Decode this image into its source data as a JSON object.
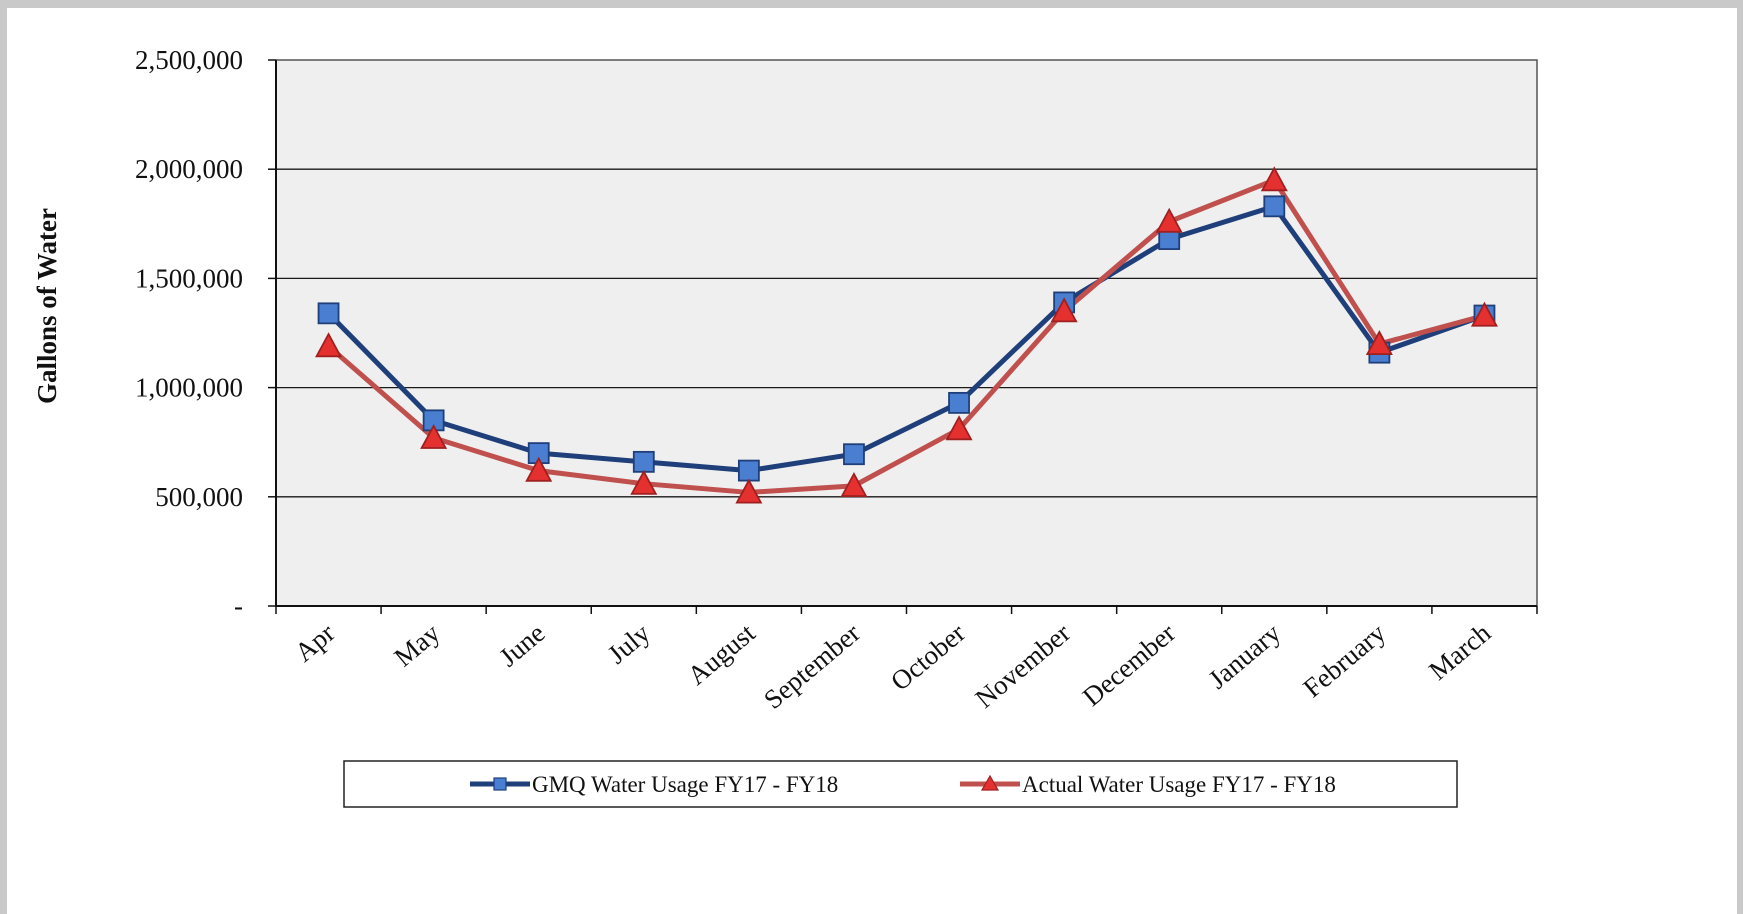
{
  "chart_data": {
    "type": "line",
    "title": "",
    "xlabel": "",
    "ylabel": "Gallons of Water",
    "ylim": [
      0,
      2500000
    ],
    "yticks": [
      0,
      500000,
      1000000,
      1500000,
      2000000,
      2500000
    ],
    "ytick_labels": [
      "-",
      "500,000",
      "1,000,000",
      "1,500,000",
      "2,000,000",
      "2,500,000"
    ],
    "categories": [
      "Apr",
      "May",
      "June",
      "July",
      "August",
      "September",
      "October",
      "November",
      "December",
      "January",
      "February",
      "March"
    ],
    "grid": true,
    "legend_position": "bottom",
    "series": [
      {
        "name": "GMQ Water Usage FY17 - FY18",
        "color": "#1f3f7a",
        "marker_color": "#4a7ed0",
        "marker": "square",
        "values": [
          1340000,
          850000,
          700000,
          660000,
          620000,
          695000,
          930000,
          1390000,
          1680000,
          1830000,
          1160000,
          1330000
        ]
      },
      {
        "name": "Actual Water Usage FY17 - FY18",
        "color": "#c0504d",
        "marker_color": "#e53030",
        "marker": "triangle",
        "values": [
          1190000,
          770000,
          620000,
          560000,
          520000,
          550000,
          810000,
          1350000,
          1760000,
          1950000,
          1200000,
          1330000
        ]
      }
    ]
  },
  "colors": {
    "plot_background": "#efefef",
    "gridline": "#1a1a1a"
  }
}
